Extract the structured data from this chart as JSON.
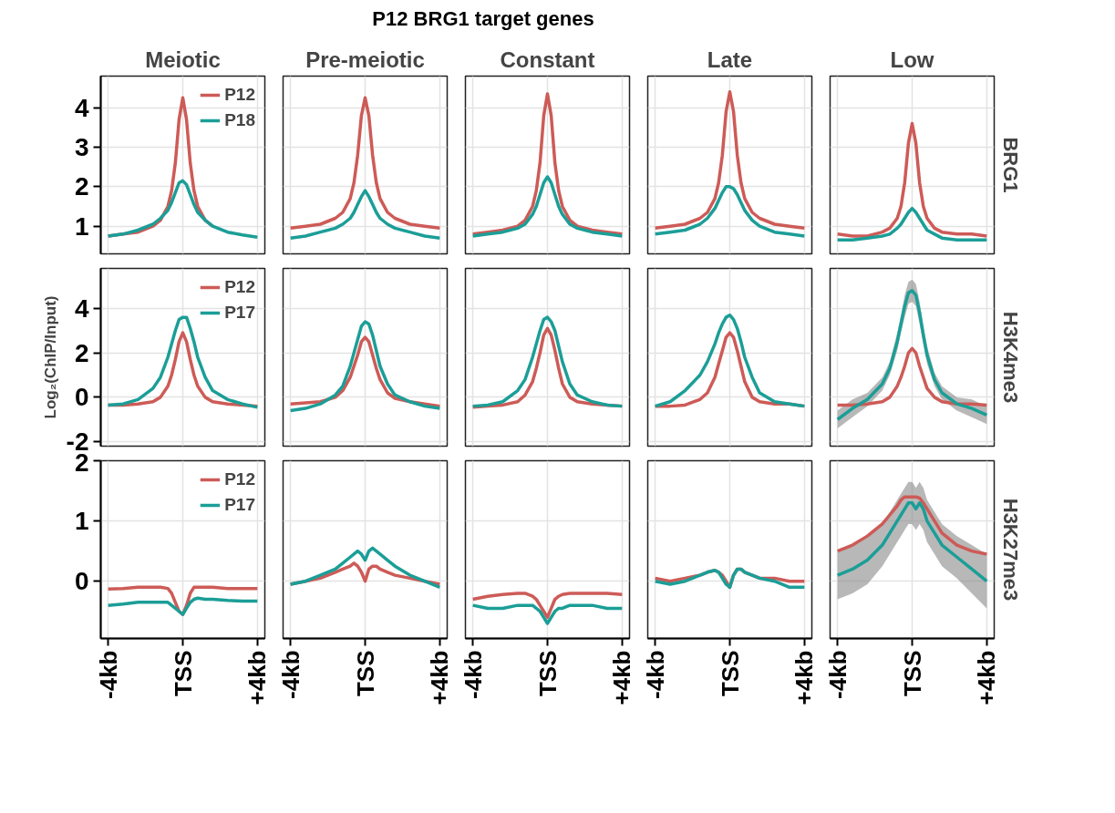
{
  "chart_data": [
    {
      "type": "other",
      "title": "P12 BRG1 target genes"
    },
    {
      "type": "line",
      "title": "Meiotic",
      "legend": "top right",
      "grid": true,
      "tick_labels": "y",
      "xlim": [
        -4.4,
        4.4
      ],
      "ylim": [
        0.3,
        4.8
      ],
      "yticks": [
        1,
        2,
        3,
        4
      ],
      "xticks": [
        -4,
        0,
        4
      ],
      "x": [
        -4,
        -3.2,
        -2.4,
        -1.6,
        -1.2,
        -0.8,
        -0.6,
        -0.4,
        -0.2,
        0,
        0.2,
        0.4,
        0.6,
        0.8,
        1.2,
        1.6,
        2.4,
        3.2,
        4
      ],
      "series": [
        {
          "name": "P12",
          "color": "#cd5b57",
          "values": [
            0.75,
            0.8,
            0.85,
            1.0,
            1.15,
            1.5,
            1.9,
            2.6,
            3.7,
            4.25,
            3.7,
            2.6,
            1.9,
            1.5,
            1.15,
            1.0,
            null,
            null,
            null
          ]
        },
        {
          "name": "P18",
          "color": "#1b9e97",
          "values": [
            0.75,
            0.8,
            0.9,
            1.05,
            1.2,
            1.4,
            1.6,
            1.85,
            2.1,
            2.15,
            2.05,
            1.8,
            1.55,
            1.35,
            1.15,
            1.0,
            0.85,
            0.78,
            0.72
          ]
        }
      ]
    },
    {
      "type": "line",
      "title": "Pre-meiotic",
      "grid": true,
      "tick_labels": false,
      "xlim": [
        -4.4,
        4.4
      ],
      "ylim": [
        0.3,
        4.8
      ],
      "yticks": [
        1,
        2,
        3,
        4
      ],
      "xticks": [
        -4,
        0,
        4
      ],
      "x": [
        -4,
        -3.2,
        -2.4,
        -1.6,
        -1.2,
        -0.8,
        -0.6,
        -0.4,
        -0.2,
        0,
        0.2,
        0.4,
        0.6,
        0.8,
        1.2,
        1.6,
        2.4,
        3.2,
        4
      ],
      "series": [
        {
          "color": "#cd5b57",
          "values": [
            0.95,
            1.0,
            1.05,
            1.2,
            1.35,
            1.7,
            2.1,
            2.8,
            3.8,
            4.25,
            3.8,
            2.8,
            2.1,
            1.7,
            1.35,
            1.2,
            1.05,
            1.0,
            0.95
          ]
        },
        {
          "color": "#1b9e97",
          "values": [
            0.7,
            0.75,
            0.85,
            0.95,
            1.05,
            1.2,
            1.35,
            1.55,
            1.75,
            1.9,
            1.75,
            1.55,
            1.35,
            1.2,
            1.05,
            0.95,
            0.85,
            0.75,
            0.7
          ]
        }
      ]
    },
    {
      "type": "line",
      "title": "Constant",
      "grid": true,
      "tick_labels": false,
      "xlim": [
        -4.4,
        4.4
      ],
      "ylim": [
        0.3,
        4.8
      ],
      "yticks": [
        1,
        2,
        3,
        4
      ],
      "xticks": [
        -4,
        0,
        4
      ],
      "x": [
        -4,
        -3.2,
        -2.4,
        -1.6,
        -1.2,
        -0.8,
        -0.6,
        -0.4,
        -0.2,
        0,
        0.2,
        0.4,
        0.6,
        0.8,
        1.2,
        1.6,
        2.4,
        3.2,
        4
      ],
      "series": [
        {
          "color": "#cd5b57",
          "values": [
            0.8,
            0.85,
            0.9,
            1.0,
            1.15,
            1.5,
            1.9,
            2.6,
            3.8,
            4.35,
            3.8,
            2.6,
            1.9,
            1.5,
            1.15,
            1.0,
            0.9,
            0.85,
            0.8
          ]
        },
        {
          "color": "#1b9e97",
          "values": [
            0.75,
            0.8,
            0.85,
            0.95,
            1.05,
            1.3,
            1.5,
            1.8,
            2.1,
            2.25,
            2.1,
            1.8,
            1.5,
            1.3,
            1.05,
            0.95,
            0.85,
            0.8,
            0.75
          ]
        }
      ]
    },
    {
      "type": "line",
      "title": "Late",
      "grid": true,
      "tick_labels": false,
      "xlim": [
        -4.4,
        4.4
      ],
      "ylim": [
        0.3,
        4.8
      ],
      "yticks": [
        1,
        2,
        3,
        4
      ],
      "xticks": [
        -4,
        0,
        4
      ],
      "x": [
        -4,
        -3.2,
        -2.4,
        -1.6,
        -1.2,
        -0.8,
        -0.6,
        -0.4,
        -0.2,
        0,
        0.2,
        0.4,
        0.6,
        0.8,
        1.2,
        1.6,
        2.4,
        3.2,
        4
      ],
      "series": [
        {
          "color": "#cd5b57",
          "values": [
            0.95,
            1.0,
            1.05,
            1.2,
            1.35,
            1.7,
            2.1,
            2.8,
            3.9,
            4.4,
            3.9,
            2.8,
            2.1,
            1.7,
            1.35,
            1.2,
            1.05,
            1.0,
            0.95
          ]
        },
        {
          "color": "#1b9e97",
          "values": [
            0.8,
            0.85,
            0.9,
            1.05,
            1.2,
            1.45,
            1.65,
            1.85,
            2.0,
            2.0,
            1.95,
            1.8,
            1.6,
            1.4,
            1.15,
            1.0,
            0.85,
            0.8,
            0.75
          ]
        }
      ]
    },
    {
      "type": "line",
      "title": "Low",
      "y2label": "BRG1",
      "grid": true,
      "tick_labels": false,
      "xlim": [
        -4.4,
        4.4
      ],
      "ylim": [
        0.3,
        4.8
      ],
      "yticks": [
        1,
        2,
        3,
        4
      ],
      "xticks": [
        -4,
        0,
        4
      ],
      "x": [
        -4,
        -3.2,
        -2.4,
        -1.6,
        -1.2,
        -0.8,
        -0.6,
        -0.4,
        -0.2,
        0,
        0.2,
        0.4,
        0.6,
        0.8,
        1.2,
        1.6,
        2.4,
        3.2,
        4
      ],
      "series": [
        {
          "color": "#cd5b57",
          "values": [
            0.8,
            0.75,
            0.75,
            0.85,
            0.95,
            1.2,
            1.5,
            2.1,
            3.1,
            3.6,
            3.1,
            2.1,
            1.5,
            1.2,
            0.95,
            0.85,
            0.8,
            0.8,
            0.75
          ]
        },
        {
          "color": "#1b9e97",
          "values": [
            0.65,
            0.65,
            0.7,
            0.75,
            0.8,
            0.95,
            1.05,
            1.2,
            1.35,
            1.45,
            1.35,
            1.2,
            1.05,
            0.9,
            0.8,
            0.7,
            0.65,
            0.65,
            0.65
          ]
        }
      ]
    },
    {
      "type": "line",
      "ylabel": "Log₂(ChIP/Input)",
      "legend": "top right",
      "grid": true,
      "tick_labels": "y",
      "xlim": [
        -4.4,
        4.4
      ],
      "ylim": [
        -2.2,
        5.8
      ],
      "yticks": [
        -2,
        0,
        2,
        4
      ],
      "xticks": [
        -4,
        0,
        4
      ],
      "x": [
        -4,
        -3.2,
        -2.4,
        -1.6,
        -1.2,
        -0.8,
        -0.6,
        -0.4,
        -0.2,
        0,
        0.2,
        0.4,
        0.6,
        0.8,
        1.2,
        1.6,
        2.4,
        3.2,
        4
      ],
      "series": [
        {
          "name": "P12",
          "color": "#cd5b57",
          "values": [
            -0.35,
            -0.35,
            -0.3,
            -0.2,
            0.0,
            0.5,
            1.0,
            1.7,
            2.5,
            2.9,
            2.5,
            1.7,
            1.0,
            0.5,
            0.0,
            -0.2,
            -0.3,
            -0.35,
            -0.4
          ]
        },
        {
          "name": "P17",
          "color": "#1b9e97",
          "values": [
            -0.35,
            -0.3,
            -0.1,
            0.4,
            0.9,
            1.8,
            2.4,
            3.0,
            3.5,
            3.6,
            3.6,
            3.1,
            2.5,
            1.8,
            0.9,
            0.3,
            -0.1,
            -0.3,
            -0.45
          ]
        }
      ]
    },
    {
      "type": "line",
      "grid": true,
      "tick_labels": false,
      "xlim": [
        -4.4,
        4.4
      ],
      "ylim": [
        -2.2,
        5.8
      ],
      "yticks": [
        -2,
        0,
        2,
        4
      ],
      "xticks": [
        -4,
        0,
        4
      ],
      "x": [
        -4,
        -3.2,
        -2.4,
        -1.6,
        -1.2,
        -0.8,
        -0.6,
        -0.4,
        -0.2,
        0,
        0.2,
        0.4,
        0.6,
        0.8,
        1.2,
        1.6,
        2.4,
        3.2,
        4
      ],
      "series": [
        {
          "color": "#cd5b57",
          "values": [
            -0.3,
            -0.25,
            -0.2,
            0.0,
            0.3,
            0.9,
            1.4,
            1.9,
            2.5,
            2.7,
            2.5,
            1.9,
            1.3,
            0.8,
            0.2,
            -0.05,
            -0.2,
            -0.3,
            -0.4
          ]
        },
        {
          "color": "#1b9e97",
          "values": [
            -0.6,
            -0.5,
            -0.3,
            0.1,
            0.5,
            1.4,
            2.0,
            2.6,
            3.2,
            3.4,
            3.3,
            2.8,
            2.1,
            1.4,
            0.6,
            0.1,
            -0.2,
            -0.4,
            -0.5
          ]
        }
      ]
    },
    {
      "type": "line",
      "grid": true,
      "tick_labels": false,
      "xlim": [
        -4.4,
        4.4
      ],
      "ylim": [
        -2.2,
        5.8
      ],
      "yticks": [
        -2,
        0,
        2,
        4
      ],
      "xticks": [
        -4,
        0,
        4
      ],
      "x": [
        -4,
        -3.2,
        -2.4,
        -1.6,
        -1.2,
        -0.8,
        -0.6,
        -0.4,
        -0.2,
        0,
        0.2,
        0.4,
        0.6,
        0.8,
        1.2,
        1.6,
        2.4,
        3.2,
        4
      ],
      "series": [
        {
          "color": "#cd5b57",
          "values": [
            -0.45,
            -0.4,
            -0.35,
            -0.2,
            0.1,
            0.7,
            1.3,
            2.0,
            2.8,
            3.1,
            2.8,
            2.1,
            1.3,
            0.6,
            0.0,
            -0.2,
            -0.3,
            -0.35,
            -0.4
          ]
        },
        {
          "color": "#1b9e97",
          "values": [
            -0.4,
            -0.35,
            -0.2,
            0.3,
            0.8,
            1.8,
            2.4,
            3.0,
            3.5,
            3.6,
            3.4,
            3.0,
            2.3,
            1.6,
            0.6,
            0.1,
            -0.2,
            -0.35,
            -0.4
          ]
        }
      ]
    },
    {
      "type": "line",
      "grid": true,
      "tick_labels": false,
      "xlim": [
        -4.4,
        4.4
      ],
      "ylim": [
        -2.2,
        5.8
      ],
      "yticks": [
        -2,
        0,
        2,
        4
      ],
      "xticks": [
        -4,
        0,
        4
      ],
      "x": [
        -4,
        -3.2,
        -2.4,
        -1.6,
        -1.2,
        -0.8,
        -0.6,
        -0.4,
        -0.2,
        0,
        0.2,
        0.4,
        0.6,
        0.8,
        1.2,
        1.6,
        2.4,
        3.2,
        4
      ],
      "series": [
        {
          "color": "#cd5b57",
          "values": [
            -0.4,
            -0.4,
            -0.35,
            -0.1,
            0.2,
            0.9,
            1.5,
            2.1,
            2.7,
            2.9,
            2.7,
            2.1,
            1.4,
            0.7,
            0.0,
            -0.2,
            -0.3,
            -0.3,
            -0.4
          ]
        },
        {
          "color": "#1b9e97",
          "values": [
            -0.4,
            -0.2,
            0.3,
            1.0,
            1.6,
            2.4,
            2.9,
            3.3,
            3.6,
            3.7,
            3.5,
            3.1,
            2.5,
            1.8,
            0.9,
            0.2,
            -0.2,
            -0.3,
            -0.4
          ]
        }
      ]
    },
    {
      "type": "line",
      "y2label": "H3K4me3",
      "grid": true,
      "tick_labels": false,
      "xlim": [
        -4.4,
        4.4
      ],
      "ylim": [
        -2.2,
        5.8
      ],
      "yticks": [
        -2,
        0,
        2,
        4
      ],
      "xticks": [
        -4,
        0,
        4
      ],
      "x": [
        -4,
        -3.2,
        -2.4,
        -1.6,
        -1.2,
        -0.8,
        -0.6,
        -0.4,
        -0.2,
        0,
        0.2,
        0.4,
        0.6,
        0.8,
        1.2,
        1.6,
        2.4,
        3.2,
        4
      ],
      "series": [
        {
          "color": "#cd5b57",
          "values": [
            -0.35,
            -0.35,
            -0.3,
            -0.2,
            0.0,
            0.5,
            0.9,
            1.4,
            2.0,
            2.2,
            2.0,
            1.4,
            0.9,
            0.4,
            0.0,
            -0.2,
            -0.3,
            -0.3,
            -0.35
          ]
        },
        {
          "color": "#1b9e97",
          "values": [
            -1.0,
            -0.5,
            -0.1,
            0.6,
            1.3,
            2.5,
            3.3,
            4.1,
            4.7,
            4.8,
            4.6,
            3.8,
            2.8,
            1.9,
            0.8,
            0.2,
            -0.3,
            -0.5,
            -0.8
          ],
          "lower": [
            -1.4,
            -0.9,
            -0.4,
            0.3,
            1.0,
            2.1,
            2.9,
            3.6,
            4.2,
            4.3,
            4.1,
            3.3,
            2.4,
            1.5,
            0.5,
            -0.1,
            -0.6,
            -0.9,
            -1.2
          ],
          "upper": [
            -0.6,
            -0.1,
            0.2,
            0.9,
            1.6,
            2.9,
            3.7,
            4.6,
            5.2,
            5.3,
            5.1,
            4.3,
            3.2,
            2.3,
            1.1,
            0.5,
            0.0,
            -0.1,
            -0.4
          ]
        }
      ]
    },
    {
      "type": "line",
      "legend": "top right",
      "grid": true,
      "xlim": [
        -4.4,
        4.4
      ],
      "ylim": [
        -0.95,
        2.0
      ],
      "yticks": [
        0,
        1,
        2
      ],
      "xticks": [
        {
          "value": -4,
          "label": "-4kb"
        },
        {
          "value": 0,
          "label": "TSS"
        },
        {
          "value": 4,
          "label": "+4kb"
        }
      ],
      "x": [
        -4,
        -3.2,
        -2.4,
        -1.6,
        -1.2,
        -0.8,
        -0.6,
        -0.4,
        -0.2,
        0,
        0.2,
        0.4,
        0.6,
        0.8,
        1.2,
        1.6,
        2.4,
        3.2,
        4
      ],
      "series": [
        {
          "name": "P12",
          "color": "#cd5b57",
          "values": [
            -0.13,
            -0.12,
            -0.1,
            -0.1,
            -0.1,
            -0.12,
            -0.2,
            -0.35,
            -0.5,
            -0.55,
            -0.4,
            -0.2,
            -0.1,
            -0.1,
            -0.1,
            -0.1,
            -0.12,
            -0.12,
            -0.12
          ]
        },
        {
          "name": "P17",
          "color": "#1b9e97",
          "values": [
            -0.4,
            -0.38,
            -0.35,
            -0.35,
            -0.35,
            -0.35,
            -0.4,
            -0.45,
            -0.5,
            -0.55,
            -0.45,
            -0.35,
            -0.3,
            -0.28,
            -0.3,
            -0.3,
            -0.32,
            -0.33,
            -0.33
          ]
        }
      ]
    },
    {
      "type": "line",
      "grid": true,
      "tick_labels": "x",
      "xlim": [
        -4.4,
        4.4
      ],
      "ylim": [
        -0.95,
        2.0
      ],
      "yticks": [
        0,
        1,
        2
      ],
      "xticks": [
        {
          "value": -4,
          "label": "-4kb"
        },
        {
          "value": 0,
          "label": "TSS"
        },
        {
          "value": 4,
          "label": "+4kb"
        }
      ],
      "x": [
        -4,
        -3.2,
        -2.4,
        -1.6,
        -1.2,
        -0.8,
        -0.6,
        -0.4,
        -0.2,
        0,
        0.2,
        0.4,
        0.6,
        0.8,
        1.2,
        1.6,
        2.4,
        3.2,
        4
      ],
      "series": [
        {
          "color": "#cd5b57",
          "values": [
            -0.05,
            0.0,
            0.05,
            0.15,
            0.2,
            0.25,
            0.3,
            0.25,
            0.15,
            0.0,
            0.2,
            0.25,
            0.25,
            0.2,
            0.15,
            0.1,
            0.05,
            0.0,
            -0.05
          ]
        },
        {
          "color": "#1b9e97",
          "values": [
            -0.05,
            0.0,
            0.1,
            0.2,
            0.3,
            0.4,
            0.45,
            0.5,
            0.45,
            0.35,
            0.5,
            0.55,
            0.5,
            0.45,
            0.35,
            0.25,
            0.1,
            0.0,
            -0.1
          ]
        }
      ]
    },
    {
      "type": "line",
      "grid": true,
      "tick_labels": "x",
      "xlim": [
        -4.4,
        4.4
      ],
      "ylim": [
        -0.95,
        2.0
      ],
      "yticks": [
        0,
        1,
        2
      ],
      "xticks": [
        {
          "value": -4,
          "label": "-4kb"
        },
        {
          "value": 0,
          "label": "TSS"
        },
        {
          "value": 4,
          "label": "+4kb"
        }
      ],
      "x": [
        -4,
        -3.2,
        -2.4,
        -1.6,
        -1.2,
        -0.8,
        -0.6,
        -0.4,
        -0.2,
        0,
        0.2,
        0.4,
        0.6,
        0.8,
        1.2,
        1.6,
        2.4,
        3.2,
        4
      ],
      "series": [
        {
          "color": "#cd5b57",
          "values": [
            -0.3,
            -0.25,
            -0.22,
            -0.2,
            -0.2,
            -0.25,
            -0.3,
            -0.4,
            -0.5,
            -0.6,
            -0.45,
            -0.3,
            -0.25,
            -0.22,
            -0.2,
            -0.2,
            -0.2,
            -0.2,
            -0.22
          ]
        },
        {
          "color": "#1b9e97",
          "values": [
            -0.4,
            -0.45,
            -0.45,
            -0.4,
            -0.4,
            -0.4,
            -0.45,
            -0.5,
            -0.6,
            -0.7,
            -0.6,
            -0.5,
            -0.45,
            -0.45,
            -0.4,
            -0.4,
            -0.4,
            -0.45,
            -0.45
          ]
        }
      ]
    },
    {
      "type": "line",
      "grid": true,
      "tick_labels": "x",
      "xlim": [
        -4.4,
        4.4
      ],
      "ylim": [
        -0.95,
        2.0
      ],
      "yticks": [
        0,
        1,
        2
      ],
      "xticks": [
        {
          "value": -4,
          "label": "-4kb"
        },
        {
          "value": 0,
          "label": "TSS"
        },
        {
          "value": 4,
          "label": "+4kb"
        }
      ],
      "x": [
        -4,
        -3.2,
        -2.4,
        -1.6,
        -1.2,
        -0.8,
        -0.6,
        -0.4,
        -0.2,
        0,
        0.2,
        0.4,
        0.6,
        0.8,
        1.2,
        1.6,
        2.4,
        3.2,
        4
      ],
      "series": [
        {
          "color": "#cd5b57",
          "values": [
            0.05,
            0.0,
            0.05,
            0.1,
            0.15,
            0.18,
            0.15,
            0.1,
            0.0,
            -0.1,
            0.1,
            0.2,
            0.2,
            0.15,
            0.1,
            0.05,
            0.05,
            0.0,
            0.0
          ]
        },
        {
          "color": "#1b9e97",
          "values": [
            0.0,
            -0.05,
            0.0,
            0.1,
            0.15,
            0.18,
            0.15,
            0.05,
            -0.05,
            -0.1,
            0.1,
            0.2,
            0.2,
            0.15,
            0.1,
            0.05,
            0.0,
            -0.1,
            -0.1
          ]
        }
      ]
    },
    {
      "type": "line",
      "y2label": "H3K27me3",
      "grid": true,
      "tick_labels": "x",
      "xlim": [
        -4.4,
        4.4
      ],
      "ylim": [
        -0.95,
        2.0
      ],
      "yticks": [
        0,
        1,
        2
      ],
      "xticks": [
        {
          "value": -4,
          "label": "-4kb"
        },
        {
          "value": 0,
          "label": "TSS"
        },
        {
          "value": 4,
          "label": "+4kb"
        }
      ],
      "x": [
        -4,
        -3.2,
        -2.4,
        -1.6,
        -1.2,
        -0.8,
        -0.6,
        -0.4,
        -0.2,
        0,
        0.2,
        0.4,
        0.6,
        0.8,
        1.2,
        1.6,
        2.4,
        3.2,
        4
      ],
      "series": [
        {
          "color": "#cd5b57",
          "values": [
            0.5,
            0.6,
            0.75,
            0.95,
            1.1,
            1.25,
            1.35,
            1.4,
            1.4,
            1.4,
            1.4,
            1.38,
            1.3,
            1.2,
            1.0,
            0.8,
            0.6,
            0.5,
            0.45
          ]
        },
        {
          "color": "#1b9e97",
          "values": [
            0.1,
            0.2,
            0.35,
            0.6,
            0.8,
            1.0,
            1.1,
            1.2,
            1.3,
            1.3,
            1.2,
            1.3,
            1.2,
            1.0,
            0.8,
            0.6,
            0.4,
            0.2,
            0.0
          ],
          "lower": [
            -0.3,
            -0.2,
            -0.05,
            0.25,
            0.45,
            0.65,
            0.75,
            0.85,
            0.95,
            0.95,
            0.85,
            0.95,
            0.85,
            0.65,
            0.45,
            0.25,
            0.05,
            -0.2,
            -0.45
          ],
          "upper": [
            0.5,
            0.6,
            0.75,
            0.95,
            1.15,
            1.35,
            1.45,
            1.55,
            1.65,
            1.65,
            1.55,
            1.65,
            1.55,
            1.35,
            1.15,
            0.95,
            0.75,
            0.6,
            0.45
          ]
        }
      ]
    }
  ]
}
